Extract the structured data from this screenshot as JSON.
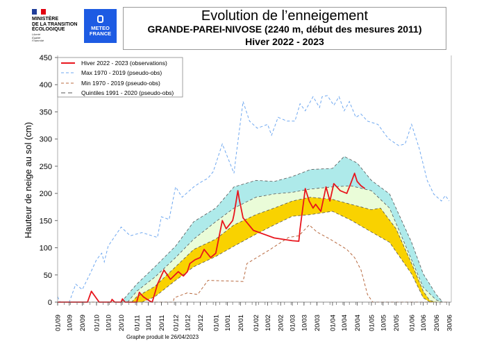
{
  "header": {
    "ministry_lines": [
      "MINISTÈRE",
      "DE LA TRANSITION",
      "ÉCOLOGIQUE"
    ],
    "motto_lines": [
      "Liberté",
      "Égalité",
      "Fraternité"
    ],
    "meteo_logo_lines": [
      "METEO",
      "FRANCE"
    ],
    "title": "Evolution de l’enneigement",
    "subtitle": "GRANDE-PAREI-NIVOSE (2240 m, début des mesures 2011)",
    "season": "Hiver 2022 - 2023",
    "colors": {
      "meteo_blue": "#1d5be3",
      "flag_blue": "#1f3d99",
      "flag_red": "#e1000f"
    }
  },
  "footer": {
    "produced": "Graphe produit le 26/04/2023"
  },
  "chart_data": {
    "type": "line",
    "title": "Evolution de l’enneigement",
    "ylabel": "Hauteur de neige au sol (cm)",
    "xlabel": "",
    "ylim": [
      0,
      450
    ],
    "yticks": [
      0,
      50,
      100,
      150,
      200,
      250,
      300,
      350,
      400,
      450
    ],
    "xlim": [
      "01/09",
      "30/06"
    ],
    "xticks": [
      "01/09",
      "10/09",
      "20/09",
      "01/10",
      "10/10",
      "20/10",
      "01/11",
      "10/11",
      "20/11",
      "01/12",
      "10/12",
      "20/12",
      "01/01",
      "10/01",
      "20/01",
      "01/02",
      "10/02",
      "20/02",
      "01/03",
      "10/03",
      "20/03",
      "01/04",
      "10/04",
      "20/04",
      "01/05",
      "10/05",
      "20/05",
      "01/06",
      "10/06",
      "20/06",
      "30/06"
    ],
    "grid": false,
    "legend_position": "top-left",
    "legend": [
      {
        "label": "Hiver 2022 - 2023 (observations)",
        "style": "solid",
        "color": "#e8141c"
      },
      {
        "label": "Max 1970 - 2019 (pseudo-obs)",
        "style": "dashed",
        "color": "#6fa8f0"
      },
      {
        "label": "Min 1970 - 2019 (pseudo-obs)",
        "style": "dashed",
        "color": "#b8693f"
      },
      {
        "label": "Quintiles 1991 - 2020 (pseudo-obs)",
        "style": "dashed",
        "color": "#555555"
      }
    ],
    "band_colors": {
      "q20_q40": "#f9d200",
      "q40_q60": "#eafcd8",
      "q60_q80": "#aeeaea"
    },
    "series": {
      "observations": [
        [
          "01/09",
          0
        ],
        [
          "24/09",
          0
        ],
        [
          "27/09",
          20
        ],
        [
          "03/10",
          0
        ],
        [
          "12/10",
          0
        ],
        [
          "13/10",
          5
        ],
        [
          "15/10",
          0
        ],
        [
          "20/10",
          0
        ],
        [
          "21/10",
          6
        ],
        [
          "23/10",
          0
        ],
        [
          "01/11",
          0
        ],
        [
          "03/11",
          18
        ],
        [
          "06/11",
          10
        ],
        [
          "11/11",
          2
        ],
        [
          "13/11",
          0
        ],
        [
          "17/11",
          33
        ],
        [
          "22/11",
          59
        ],
        [
          "27/11",
          42
        ],
        [
          "03/12",
          56
        ],
        [
          "07/12",
          48
        ],
        [
          "10/12",
          56
        ],
        [
          "12/12",
          71
        ],
        [
          "16/12",
          78
        ],
        [
          "20/12",
          82
        ],
        [
          "23/12",
          97
        ],
        [
          "28/12",
          82
        ],
        [
          "01/01",
          90
        ],
        [
          "06/01",
          150
        ],
        [
          "09/01",
          135
        ],
        [
          "14/01",
          150
        ],
        [
          "15/01",
          161
        ],
        [
          "18/01",
          205
        ],
        [
          "19/01",
          190
        ],
        [
          "22/01",
          155
        ],
        [
          "30/01",
          132
        ],
        [
          "15/02",
          118
        ],
        [
          "01/03",
          113
        ],
        [
          "06/03",
          112
        ],
        [
          "07/03",
          135
        ],
        [
          "11/03",
          209
        ],
        [
          "14/03",
          186
        ],
        [
          "17/03",
          173
        ],
        [
          "19/03",
          180
        ],
        [
          "23/03",
          167
        ],
        [
          "27/03",
          212
        ],
        [
          "30/03",
          186
        ],
        [
          "02/04",
          218
        ],
        [
          "07/04",
          205
        ],
        [
          "12/04",
          200
        ],
        [
          "15/04",
          218
        ],
        [
          "18/04",
          237
        ],
        [
          "20/04",
          222
        ],
        [
          "23/04",
          214
        ],
        [
          "26/04",
          209
        ]
      ],
      "max": [
        [
          "01/09",
          10
        ],
        [
          "03/09",
          0
        ],
        [
          "10/09",
          0
        ],
        [
          "15/09",
          33
        ],
        [
          "20/09",
          23
        ],
        [
          "26/09",
          52
        ],
        [
          "01/10",
          78
        ],
        [
          "05/10",
          90
        ],
        [
          "07/10",
          74
        ],
        [
          "10/10",
          103
        ],
        [
          "20/10",
          138
        ],
        [
          "27/10",
          122
        ],
        [
          "05/11",
          128
        ],
        [
          "17/11",
          119
        ],
        [
          "20/11",
          157
        ],
        [
          "26/11",
          152
        ],
        [
          "01/12",
          212
        ],
        [
          "06/12",
          193
        ],
        [
          "15/12",
          212
        ],
        [
          "20/12",
          220
        ],
        [
          "26/12",
          228
        ],
        [
          "30/12",
          240
        ],
        [
          "06/01",
          291
        ],
        [
          "15/01",
          237
        ],
        [
          "17/01",
          276
        ],
        [
          "22/01",
          369
        ],
        [
          "27/01",
          333
        ],
        [
          "02/02",
          320
        ],
        [
          "10/02",
          327
        ],
        [
          "13/02",
          307
        ],
        [
          "18/02",
          340
        ],
        [
          "25/02",
          333
        ],
        [
          "03/03",
          333
        ],
        [
          "07/03",
          365
        ],
        [
          "11/03",
          352
        ],
        [
          "17/03",
          378
        ],
        [
          "22/03",
          358
        ],
        [
          "24/03",
          378
        ],
        [
          "28/03",
          380
        ],
        [
          "02/04",
          362
        ],
        [
          "06/04",
          378
        ],
        [
          "10/04",
          352
        ],
        [
          "14/04",
          369
        ],
        [
          "19/04",
          340
        ],
        [
          "23/04",
          346
        ],
        [
          "28/04",
          333
        ],
        [
          "06/05",
          327
        ],
        [
          "14/05",
          301
        ],
        [
          "22/05",
          288
        ],
        [
          "27/05",
          291
        ],
        [
          "01/06",
          327
        ],
        [
          "07/06",
          282
        ],
        [
          "13/06",
          224
        ],
        [
          "18/06",
          199
        ],
        [
          "24/06",
          186
        ],
        [
          "27/06",
          196
        ],
        [
          "30/06",
          186
        ]
      ],
      "min": [
        [
          "01/09",
          0
        ],
        [
          "29/11",
          0
        ],
        [
          "30/11",
          8
        ],
        [
          "10/12",
          17
        ],
        [
          "18/12",
          14
        ],
        [
          "26/12",
          40
        ],
        [
          "22/01",
          38
        ],
        [
          "25/01",
          71
        ],
        [
          "12/02",
          97
        ],
        [
          "26/02",
          119
        ],
        [
          "06/03",
          122
        ],
        [
          "14/03",
          142
        ],
        [
          "20/03",
          129
        ],
        [
          "30/03",
          116
        ],
        [
          "12/04",
          97
        ],
        [
          "18/04",
          82
        ],
        [
          "23/04",
          59
        ],
        [
          "28/04",
          14
        ],
        [
          "02/05",
          0
        ],
        [
          "30/06",
          0
        ]
      ],
      "q80": [
        [
          "20/10",
          0
        ],
        [
          "01/11",
          33
        ],
        [
          "15/11",
          65
        ],
        [
          "01/12",
          103
        ],
        [
          "15/12",
          148
        ],
        [
          "01/01",
          173
        ],
        [
          "15/01",
          212
        ],
        [
          "01/02",
          224
        ],
        [
          "15/02",
          222
        ],
        [
          "01/03",
          231
        ],
        [
          "15/03",
          244
        ],
        [
          "01/04",
          246
        ],
        [
          "10/04",
          268
        ],
        [
          "20/04",
          256
        ],
        [
          "01/05",
          224
        ],
        [
          "15/05",
          199
        ],
        [
          "01/06",
          110
        ],
        [
          "10/06",
          52
        ],
        [
          "20/06",
          14
        ],
        [
          "25/06",
          0
        ]
      ],
      "q60": [
        [
          "25/10",
          0
        ],
        [
          "01/11",
          20
        ],
        [
          "15/11",
          46
        ],
        [
          "01/12",
          82
        ],
        [
          "15/12",
          116
        ],
        [
          "01/01",
          148
        ],
        [
          "15/01",
          173
        ],
        [
          "01/02",
          193
        ],
        [
          "15/02",
          199
        ],
        [
          "01/03",
          202
        ],
        [
          "15/03",
          208
        ],
        [
          "01/04",
          212
        ],
        [
          "15/04",
          214
        ],
        [
          "01/05",
          205
        ],
        [
          "15/05",
          173
        ],
        [
          "01/06",
          78
        ],
        [
          "10/06",
          27
        ],
        [
          "20/06",
          4
        ],
        [
          "25/06",
          0
        ]
      ],
      "q40": [
        [
          "28/10",
          0
        ],
        [
          "01/11",
          10
        ],
        [
          "15/11",
          29
        ],
        [
          "01/12",
          65
        ],
        [
          "15/12",
          97
        ],
        [
          "01/01",
          116
        ],
        [
          "15/01",
          142
        ],
        [
          "01/02",
          161
        ],
        [
          "15/02",
          173
        ],
        [
          "01/03",
          186
        ],
        [
          "15/03",
          193
        ],
        [
          "01/04",
          189
        ],
        [
          "15/04",
          180
        ],
        [
          "01/05",
          170
        ],
        [
          "08/05",
          173
        ],
        [
          "20/05",
          135
        ],
        [
          "01/06",
          71
        ],
        [
          "10/06",
          20
        ],
        [
          "15/06",
          3
        ],
        [
          "20/06",
          0
        ]
      ],
      "q20": [
        [
          "05/11",
          0
        ],
        [
          "15/11",
          10
        ],
        [
          "01/12",
          40
        ],
        [
          "15/12",
          65
        ],
        [
          "01/01",
          84
        ],
        [
          "15/01",
          103
        ],
        [
          "01/02",
          125
        ],
        [
          "15/02",
          142
        ],
        [
          "01/03",
          158
        ],
        [
          "15/03",
          161
        ],
        [
          "01/04",
          167
        ],
        [
          "15/04",
          151
        ],
        [
          "01/05",
          129
        ],
        [
          "15/05",
          110
        ],
        [
          "01/06",
          52
        ],
        [
          "10/06",
          8
        ],
        [
          "15/06",
          0
        ]
      ]
    }
  }
}
